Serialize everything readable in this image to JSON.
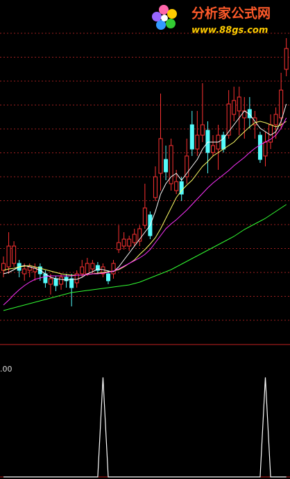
{
  "watermark": {
    "title": "分析家公式网",
    "url": "www.88gs.com"
  },
  "chart_data": [
    {
      "type": "candlestick",
      "up_color": "#ff3232",
      "down_color": "#54fcfc",
      "ylim": [
        0,
        495
      ],
      "open": [
        105,
        110,
        115,
        115,
        100,
        105,
        103,
        110,
        100,
        85,
        93,
        85,
        95,
        93,
        87,
        100,
        100,
        107,
        112,
        100,
        100,
        100,
        135,
        140,
        140,
        145,
        147,
        170,
        185,
        210,
        245,
        265,
        230,
        220,
        233,
        240,
        315,
        280,
        300,
        307,
        275,
        280,
        300,
        300,
        330,
        335,
        325,
        337,
        315,
        300,
        270,
        290,
        315,
        325,
        395
      ],
      "high": [
        125,
        160,
        147,
        120,
        115,
        115,
        115,
        115,
        105,
        100,
        97,
        100,
        100,
        100,
        105,
        120,
        123,
        120,
        117,
        115,
        105,
        120,
        170,
        160,
        155,
        165,
        170,
        230,
        190,
        255,
        360,
        285,
        295,
        250,
        240,
        295,
        335,
        335,
        375,
        320,
        300,
        315,
        305,
        365,
        370,
        370,
        355,
        355,
        335,
        305,
        305,
        330,
        340,
        390,
        440
      ],
      "low": [
        95,
        100,
        110,
        95,
        90,
        95,
        90,
        90,
        80,
        70,
        75,
        77,
        80,
        53,
        80,
        95,
        97,
        100,
        100,
        95,
        85,
        93,
        130,
        135,
        133,
        140,
        140,
        165,
        150,
        205,
        220,
        235,
        220,
        215,
        205,
        230,
        270,
        270,
        290,
        245,
        270,
        250,
        275,
        295,
        320,
        300,
        295,
        310,
        295,
        260,
        255,
        280,
        295,
        310,
        385
      ],
      "close": [
        115,
        140,
        140,
        105,
        107,
        110,
        108,
        100,
        87,
        93,
        83,
        95,
        90,
        80,
        100,
        110,
        115,
        115,
        105,
        110,
        90,
        115,
        145,
        150,
        150,
        157,
        165,
        195,
        155,
        240,
        295,
        247,
        285,
        233,
        215,
        270,
        280,
        300,
        315,
        275,
        285,
        300,
        280,
        345,
        350,
        355,
        335,
        325,
        325,
        265,
        290,
        315,
        330,
        365,
        425
      ],
      "series": [
        {
          "color": "#ffffff",
          "values": [
            100,
            102,
            106,
            110,
            112,
            110,
            108,
            105,
            100,
            95,
            93,
            92,
            91,
            92,
            92,
            95,
            100,
            103,
            107,
            106,
            104,
            103,
            110,
            120,
            130,
            140,
            150,
            160,
            170,
            190,
            215,
            230,
            240,
            245,
            235,
            245,
            255,
            265,
            280,
            290,
            290,
            290,
            295,
            305,
            315,
            325,
            335,
            330,
            320,
            310,
            305,
            300,
            305,
            320,
            345
          ]
        },
        {
          "color": "#ffff66",
          "values": [
            105,
            107,
            108,
            110,
            111,
            112,
            110,
            108,
            106,
            104,
            102,
            100,
            99,
            98,
            98,
            98,
            99,
            100,
            101,
            102,
            103,
            104,
            106,
            110,
            115,
            120,
            128,
            135,
            143,
            152,
            165,
            180,
            195,
            210,
            220,
            228,
            235,
            245,
            255,
            262,
            270,
            275,
            280,
            285,
            290,
            298,
            305,
            312,
            318,
            320,
            318,
            315,
            312,
            315,
            320
          ]
        },
        {
          "color": "#ff33ff",
          "values": [
            55,
            62,
            70,
            77,
            83,
            88,
            92,
            94,
            96,
            97,
            97,
            97,
            97,
            97,
            98,
            98,
            99,
            100,
            100,
            101,
            102,
            104,
            107,
            111,
            115,
            119,
            123,
            128,
            135,
            145,
            155,
            165,
            172,
            178,
            185,
            192,
            200,
            208,
            216,
            224,
            231,
            237,
            243,
            249,
            256,
            262,
            268,
            275,
            281,
            286,
            290,
            294,
            300,
            310,
            325
          ]
        },
        {
          "color": "#33ff33",
          "values": [
            47,
            49,
            51,
            53,
            55,
            57,
            59,
            61,
            63,
            65,
            67,
            69,
            71,
            73,
            74,
            75,
            76,
            77,
            78,
            79,
            80,
            81,
            82,
            83,
            84,
            86,
            88,
            91,
            94,
            97,
            100,
            103,
            106,
            110,
            114,
            118,
            122,
            126,
            130,
            134,
            138,
            142,
            146,
            150,
            154,
            159,
            164,
            168,
            172,
            176,
            180,
            185,
            190,
            195,
            200
          ]
        }
      ]
    },
    {
      "type": "line",
      "top_label": ".00",
      "ylim": [
        0,
        1.1
      ],
      "color": "#ffffff",
      "values": [
        0,
        0,
        0,
        0,
        0,
        0,
        0,
        0,
        0,
        0,
        0,
        0,
        0,
        0,
        0,
        0,
        0,
        0,
        0,
        1,
        0,
        0,
        0,
        0,
        0,
        0,
        0,
        0,
        0,
        0,
        0,
        0,
        0,
        0,
        0,
        0,
        0,
        0,
        0,
        0,
        0,
        0,
        0,
        0,
        0,
        0,
        0,
        0,
        0,
        0,
        1,
        0,
        0,
        0,
        0
      ]
    }
  ]
}
